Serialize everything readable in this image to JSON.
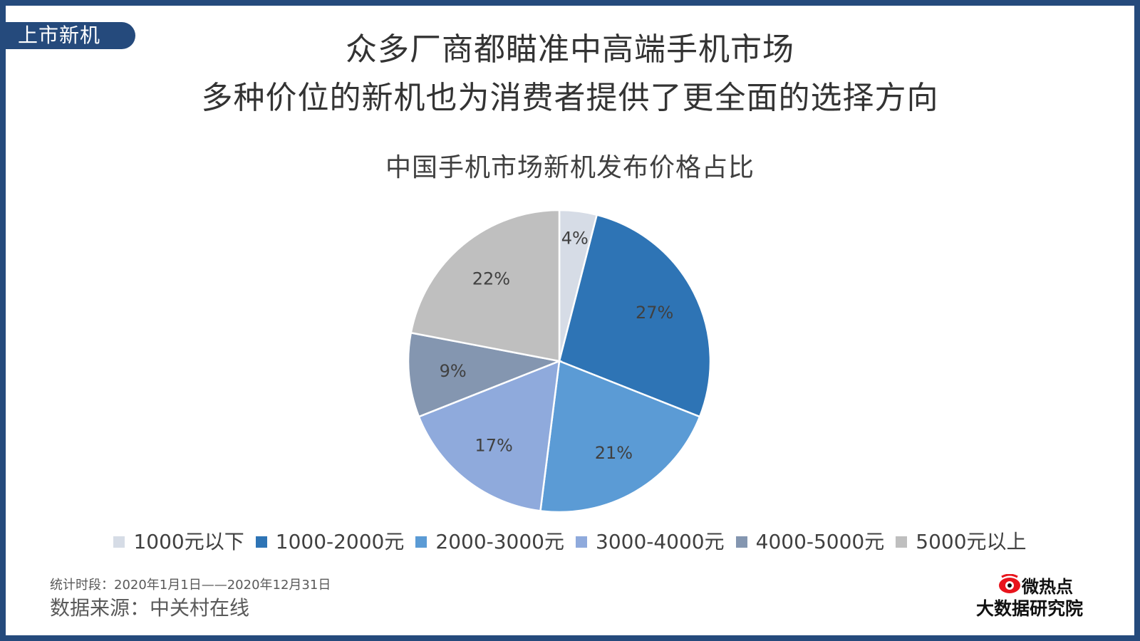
{
  "tag": "上市新机",
  "headline": {
    "line1": "众多厂商都瞄准中高端手机市场",
    "line2": "多种价位的新机也为消费者提供了更全面的选择方向"
  },
  "chart_data": {
    "type": "pie",
    "title": "中国手机市场新机发布价格占比",
    "categories": [
      "1000元以下",
      "1000-2000元",
      "2000-3000元",
      "3000-4000元",
      "4000-5000元",
      "5000元以上"
    ],
    "values": [
      4,
      27,
      21,
      17,
      9,
      22
    ],
    "labels": [
      "4%",
      "27%",
      "21%",
      "17%",
      "9%",
      "22%"
    ],
    "colors": [
      "#d6dce6",
      "#2e74b5",
      "#5b9bd5",
      "#8faadc",
      "#8496b0",
      "#bfbfbf"
    ],
    "legend_position": "bottom"
  },
  "footer": {
    "period": "统计时段：2020年1月1日——2020年12月31日",
    "source": "数据来源：中关村在线"
  },
  "logo": {
    "top": "微热点",
    "bottom": "大数据研究院",
    "icon": "eye-logo-icon"
  }
}
